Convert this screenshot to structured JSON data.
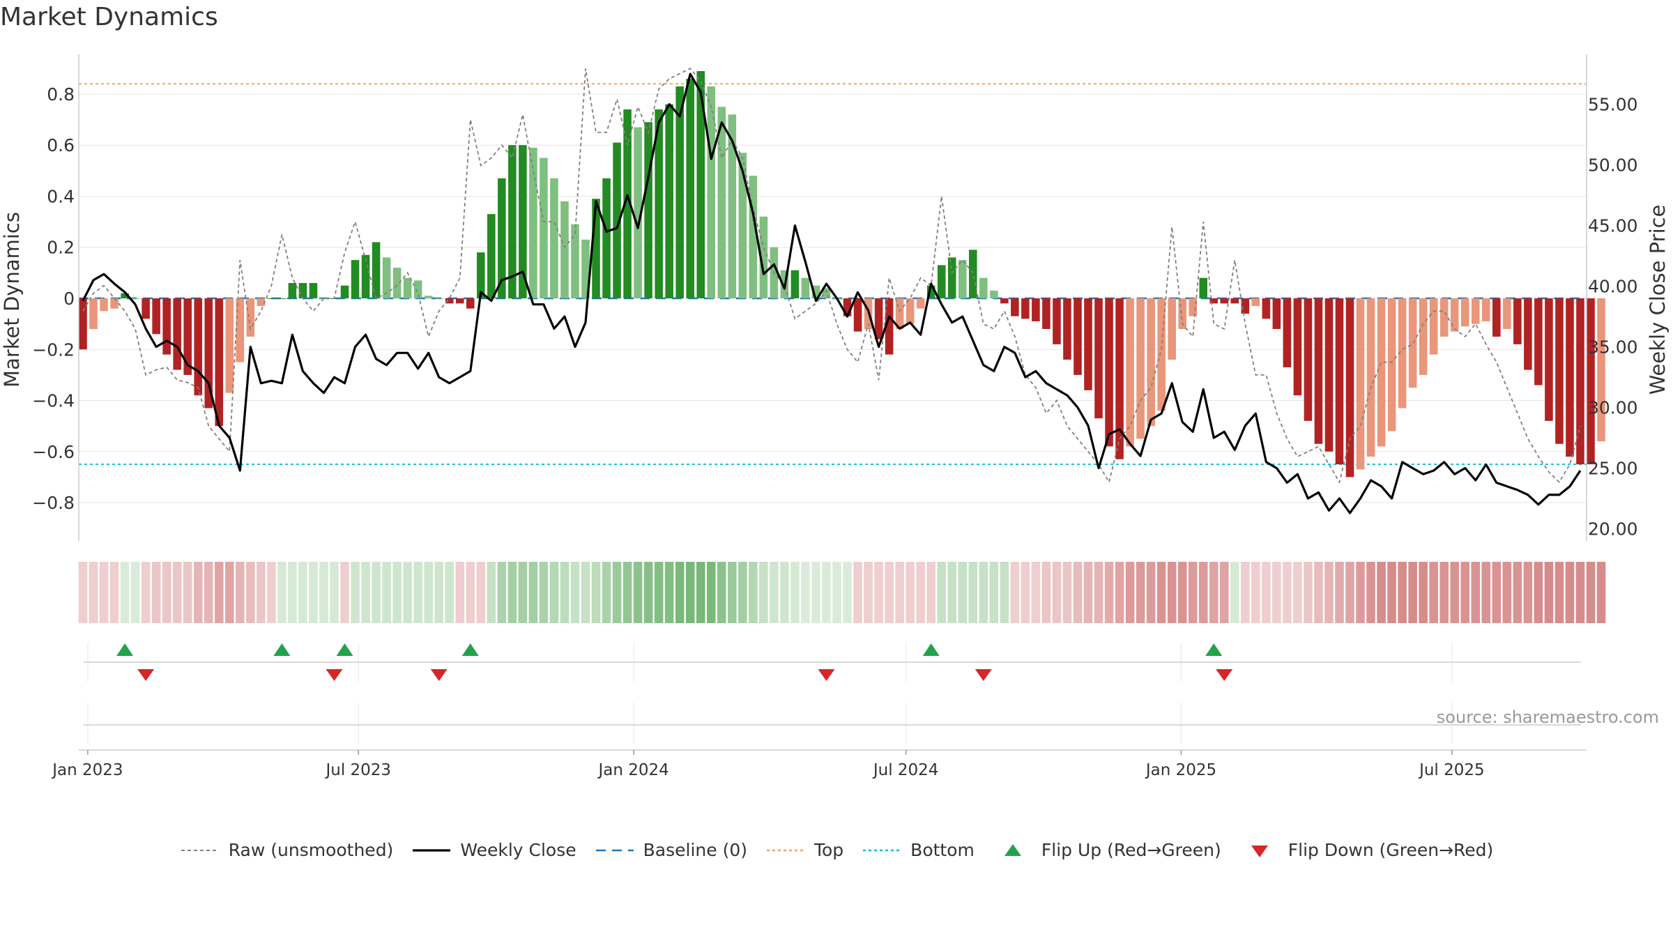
{
  "title": "Market Dynamics",
  "source": "source: sharemaestro.com",
  "colors": {
    "strong_green": "#228b22",
    "light_green": "#7fbf7f",
    "strong_red": "#b22222",
    "light_red": "#e9967a",
    "close_line": "#000000",
    "raw_line": "#808080",
    "baseline": "#1f77b4",
    "top_line": "#f4a460",
    "bottom_line": "#17becf",
    "flip_up": "#22a34a",
    "flip_down": "#d62728"
  },
  "legend": [
    {
      "name": "legend-raw",
      "label": "Raw (unsmoothed)",
      "kind": "dashed-gray"
    },
    {
      "name": "legend-weekly-close",
      "label": "Weekly Close",
      "kind": "solid-black"
    },
    {
      "name": "legend-baseline",
      "label": "Baseline (0)",
      "kind": "dashed-blue"
    },
    {
      "name": "legend-top",
      "label": "Top",
      "kind": "dotted-orange"
    },
    {
      "name": "legend-bottom",
      "label": "Bottom",
      "kind": "dotted-cyan"
    },
    {
      "name": "legend-flip-up",
      "label": "Flip Up (Red→Green)",
      "kind": "triangle-up"
    },
    {
      "name": "legend-flip-down",
      "label": "Flip Down (Green→Red)",
      "kind": "triangle-down"
    }
  ],
  "chart_data": {
    "type": "bar",
    "title": "Market Dynamics",
    "ylabel": "Market Dynamics",
    "y2label": "Weekly Close Price",
    "ylim": [
      -0.95,
      0.95
    ],
    "y2lim": [
      19.0,
      59.0
    ],
    "yticks": [
      0.8,
      0.6,
      0.4,
      0.2,
      0,
      -0.2,
      -0.4,
      -0.6,
      -0.8
    ],
    "ytick_labels": [
      "0.8",
      "0.6",
      "0.4",
      "0.2",
      "0",
      "−0.2",
      "−0.4",
      "−0.6",
      "−0.8"
    ],
    "y2ticks": [
      55,
      50,
      45,
      40,
      35,
      30,
      25,
      20
    ],
    "y2tick_labels": [
      "55.00",
      "50.00",
      "45.00",
      "40.00",
      "35.00",
      "30.00",
      "25.00",
      "20.00"
    ],
    "x_start": "2022-12-26",
    "x_end": "2025-09-29",
    "x_ticks": [
      {
        "date": "2023-01-01",
        "label": "Jan 2023"
      },
      {
        "date": "2023-07-01",
        "label": "Jul 2023"
      },
      {
        "date": "2024-01-01",
        "label": "Jan 2024"
      },
      {
        "date": "2024-07-01",
        "label": "Jul 2024"
      },
      {
        "date": "2025-01-01",
        "label": "Jan 2025"
      },
      {
        "date": "2025-07-01",
        "label": "Jul 2025"
      }
    ],
    "top_level": 0.84,
    "bottom_level": -0.65,
    "grid": true,
    "legend_position": "bottom",
    "series": [
      {
        "name": "Weekly Close",
        "y_axis": "right"
      },
      {
        "name": "Raw (unsmoothed)",
        "y_axis": "left"
      },
      {
        "name": "Baseline (0)",
        "y_axis": "left"
      },
      {
        "name": "Top",
        "y_axis": "left"
      },
      {
        "name": "Bottom",
        "y_axis": "left"
      }
    ],
    "momentum_bars": [
      -0.2,
      -0.12,
      -0.05,
      -0.04,
      0.02,
      0.0,
      -0.08,
      -0.14,
      -0.22,
      -0.28,
      -0.3,
      -0.38,
      -0.43,
      -0.5,
      -0.37,
      -0.25,
      -0.15,
      -0.03,
      0.0,
      0.0,
      0.06,
      0.06,
      0.06,
      0.0,
      0.0,
      0.05,
      0.15,
      0.17,
      0.22,
      0.16,
      0.12,
      0.08,
      0.07,
      0.01,
      0.0,
      -0.02,
      -0.02,
      -0.04,
      0.18,
      0.33,
      0.47,
      0.6,
      0.6,
      0.59,
      0.55,
      0.47,
      0.38,
      0.29,
      0.23,
      0.39,
      0.47,
      0.61,
      0.74,
      0.67,
      0.69,
      0.74,
      0.76,
      0.83,
      0.86,
      0.89,
      0.83,
      0.75,
      0.72,
      0.57,
      0.48,
      0.32,
      0.2,
      0.11,
      0.11,
      0.08,
      0.05,
      0.04,
      0.0,
      -0.07,
      -0.13,
      -0.12,
      -0.16,
      -0.22,
      -0.12,
      -0.1,
      -0.04,
      0.05,
      0.13,
      0.16,
      0.15,
      0.19,
      0.08,
      0.03,
      -0.02,
      -0.07,
      -0.08,
      -0.09,
      -0.12,
      -0.18,
      -0.24,
      -0.3,
      -0.36,
      -0.47,
      -0.58,
      -0.63,
      -0.58,
      -0.55,
      -0.5,
      -0.44,
      -0.24,
      -0.12,
      -0.07,
      0.08,
      -0.02,
      -0.02,
      -0.02,
      -0.06,
      -0.03,
      -0.08,
      -0.12,
      -0.27,
      -0.38,
      -0.48,
      -0.57,
      -0.6,
      -0.65,
      -0.7,
      -0.67,
      -0.62,
      -0.58,
      -0.52,
      -0.43,
      -0.35,
      -0.3,
      -0.22,
      -0.15,
      -0.13,
      -0.11,
      -0.1,
      -0.09,
      -0.15,
      -0.12,
      -0.18,
      -0.28,
      -0.34,
      -0.48,
      -0.57,
      -0.62,
      -0.65,
      -0.65,
      -0.56
    ],
    "weekly_close": [
      38.8,
      40.5,
      41.0,
      40.2,
      39.5,
      38.5,
      36.5,
      35.0,
      35.5,
      35.0,
      33.5,
      33.0,
      32.0,
      28.5,
      27.5,
      24.8,
      35.0,
      32.0,
      32.2,
      32.0,
      36.0,
      33.0,
      32.0,
      31.2,
      32.5,
      32.0,
      35.0,
      36.0,
      34.0,
      33.5,
      34.5,
      34.5,
      33.2,
      34.5,
      32.5,
      32.0,
      32.5,
      33.0,
      39.5,
      38.8,
      40.5,
      40.8,
      41.2,
      38.5,
      38.5,
      36.5,
      37.5,
      35.0,
      37.0,
      47.0,
      44.5,
      44.8,
      47.5,
      44.8,
      49.0,
      53.5,
      55.0,
      54.0,
      57.5,
      56.0,
      50.5,
      53.5,
      52.0,
      49.5,
      46.0,
      41.0,
      41.8,
      39.8,
      45.0,
      42.0,
      38.8,
      40.2,
      39.0,
      37.5,
      39.5,
      38.0,
      35.0,
      37.5,
      36.5,
      37.0,
      36.0,
      40.2,
      38.5,
      37.0,
      37.5,
      35.5,
      33.5,
      33.0,
      35.0,
      34.5,
      32.5,
      33.0,
      32.0,
      31.5,
      31.0,
      30.0,
      28.5,
      25.0,
      27.8,
      28.2,
      27.0,
      26.0,
      29.0,
      29.5,
      32.0,
      28.8,
      28.0,
      31.5,
      27.5,
      28.0,
      26.5,
      28.5,
      29.5,
      25.5,
      25.0,
      23.8,
      24.5,
      22.5,
      23.0,
      21.5,
      22.5,
      21.3,
      22.5,
      24.0,
      23.5,
      22.5,
      25.5,
      25.0,
      24.5,
      24.8,
      25.5,
      24.5,
      25.0,
      24.0,
      25.3,
      23.8,
      23.5,
      23.2,
      22.8,
      22.0,
      22.8,
      22.8,
      23.5,
      24.8
    ],
    "raw_values": [
      -0.05,
      0.02,
      0.05,
      0.0,
      -0.05,
      -0.12,
      -0.3,
      -0.28,
      -0.27,
      -0.32,
      -0.33,
      -0.35,
      -0.5,
      -0.55,
      -0.6,
      0.15,
      -0.12,
      -0.05,
      0.05,
      0.25,
      0.08,
      0.0,
      -0.05,
      0.0,
      0.0,
      0.18,
      0.3,
      0.15,
      0.0,
      0.02,
      0.05,
      0.1,
      0.02,
      -0.15,
      -0.05,
      0.0,
      0.08,
      0.7,
      0.52,
      0.55,
      0.6,
      0.55,
      0.72,
      0.5,
      0.3,
      0.3,
      0.2,
      0.25,
      0.9,
      0.65,
      0.65,
      0.78,
      0.6,
      0.75,
      0.65,
      0.82,
      0.86,
      0.88,
      0.9,
      0.85,
      0.75,
      0.55,
      0.62,
      0.55,
      0.35,
      0.2,
      0.1,
      0.05,
      -0.08,
      -0.05,
      -0.02,
      0.03,
      -0.1,
      -0.2,
      -0.25,
      -0.1,
      -0.32,
      0.08,
      -0.05,
      0.0,
      0.08,
      0.05,
      0.4,
      0.1,
      0.15,
      0.1,
      -0.1,
      -0.12,
      -0.05,
      -0.15,
      -0.3,
      -0.35,
      -0.45,
      -0.4,
      -0.5,
      -0.55,
      -0.6,
      -0.65,
      -0.72,
      -0.55,
      -0.5,
      -0.4,
      -0.35,
      -0.2,
      0.28,
      -0.1,
      -0.15,
      0.3,
      -0.1,
      -0.12,
      0.15,
      -0.1,
      -0.3,
      -0.3,
      -0.45,
      -0.55,
      -0.62,
      -0.6,
      -0.58,
      -0.65,
      -0.72,
      -0.55,
      -0.5,
      -0.35,
      -0.25,
      -0.25,
      -0.2,
      -0.18,
      -0.1,
      -0.05,
      -0.05,
      -0.12,
      -0.15,
      -0.1,
      -0.18,
      -0.25,
      -0.35,
      -0.45,
      -0.55,
      -0.62,
      -0.68,
      -0.72,
      -0.65,
      -0.5
    ],
    "regime_strip": [
      -0.3,
      -0.3,
      -0.3,
      -0.3,
      0.2,
      0.2,
      -0.3,
      -0.35,
      -0.35,
      -0.35,
      -0.35,
      -0.45,
      -0.45,
      -0.55,
      -0.55,
      -0.45,
      -0.4,
      -0.35,
      -0.3,
      0.25,
      0.25,
      0.25,
      0.25,
      0.25,
      0.25,
      -0.3,
      0.3,
      0.3,
      0.3,
      0.3,
      0.3,
      0.3,
      0.3,
      0.3,
      0.3,
      0.3,
      -0.3,
      -0.3,
      -0.3,
      0.35,
      0.5,
      0.55,
      0.55,
      0.55,
      0.5,
      0.45,
      0.4,
      0.35,
      0.35,
      0.4,
      0.5,
      0.6,
      0.65,
      0.7,
      0.72,
      0.75,
      0.75,
      0.8,
      0.82,
      0.82,
      0.8,
      0.7,
      0.6,
      0.55,
      0.45,
      0.35,
      0.3,
      0.3,
      0.25,
      0.2,
      0.2,
      0.2,
      0.2,
      0.2,
      -0.3,
      -0.3,
      -0.3,
      -0.3,
      -0.3,
      -0.3,
      -0.3,
      -0.3,
      0.35,
      0.35,
      0.35,
      0.35,
      0.35,
      0.35,
      0.35,
      -0.3,
      -0.3,
      -0.3,
      -0.35,
      -0.35,
      -0.35,
      -0.4,
      -0.45,
      -0.45,
      -0.5,
      -0.55,
      -0.6,
      -0.6,
      -0.6,
      -0.65,
      -0.65,
      -0.65,
      -0.6,
      -0.6,
      -0.55,
      -0.55,
      0.25,
      -0.3,
      -0.3,
      -0.3,
      -0.3,
      -0.3,
      -0.3,
      -0.35,
      -0.4,
      -0.45,
      -0.5,
      -0.55,
      -0.6,
      -0.65,
      -0.7,
      -0.7,
      -0.7,
      -0.7,
      -0.7,
      -0.65,
      -0.65,
      -0.65,
      -0.65,
      -0.65,
      -0.65,
      -0.65,
      -0.65,
      -0.65,
      -0.65,
      -0.7,
      -0.7,
      -0.7,
      -0.7,
      -0.7,
      -0.7,
      -0.7
    ],
    "flip_up_weeks": [
      4,
      19,
      25,
      37,
      81,
      108
    ],
    "flip_down_weeks": [
      6,
      24,
      34,
      71,
      86,
      109
    ]
  }
}
